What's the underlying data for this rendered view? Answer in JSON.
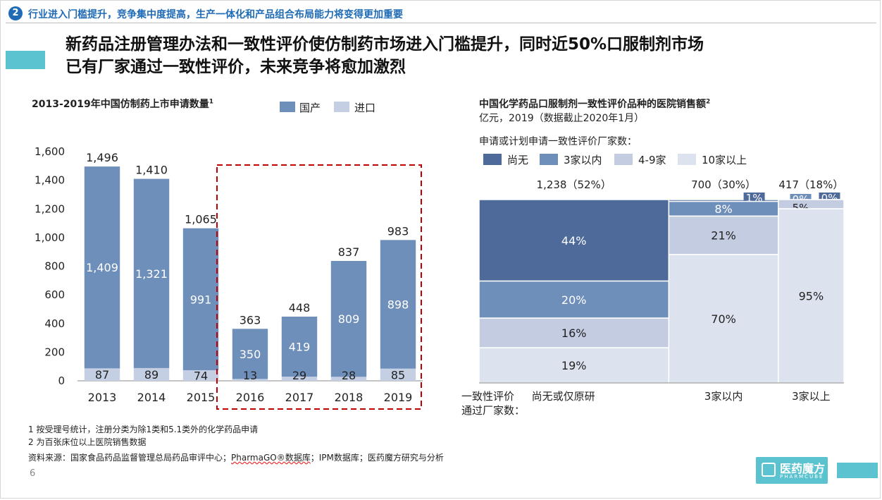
{
  "section": {
    "number": "2",
    "text": "行业进入门槛提升，竞争集中度提高，生产一体化和产品组合布局能力将变得更加重要"
  },
  "title_lines": [
    "新药品注册管理办法和一致性评价使仿制药市场进入门槛提升，同时近50%口服制剂市场",
    "已有厂家通过一致性评价，未来竞争将愈加激烈"
  ],
  "left": {
    "title": "2013-2019年中国仿制药上市申请数量",
    "title_sup": "1"
  },
  "right": {
    "title": "中国化学药品口服制剂一致性评价品种的医院销售额",
    "title_sup": "2",
    "subtitle": "亿元，2019（数据截止2020年1月）",
    "legend_title": "申请或计划申请一致性评价厂家数："
  },
  "colors": {
    "accent": "#1f6bb5",
    "teal": "#5ac3cf",
    "domestic": "#6f8fbb",
    "import": "#c5cfe3",
    "highlight": "#c00000",
    "seg_none": "#4d6a9a",
    "seg_lt3": "#6f8fbb",
    "seg_4to9": "#c3cce0",
    "seg_10plus": "#dde3ee"
  },
  "chart_data": [
    {
      "type": "bar",
      "stacked": true,
      "title": "2013-2019年中国仿制药上市申请数量",
      "categories": [
        "2013",
        "2014",
        "2015",
        "2016",
        "2017",
        "2018",
        "2019"
      ],
      "series": [
        {
          "name": "国产",
          "values": [
            1409,
            1321,
            991,
            350,
            419,
            809,
            898
          ]
        },
        {
          "name": "进口",
          "values": [
            87,
            89,
            74,
            13,
            29,
            28,
            85
          ]
        }
      ],
      "totals": [
        1496,
        1410,
        1065,
        363,
        448,
        837,
        983
      ],
      "total_labels": [
        "1,496",
        "1,410",
        "1,065",
        "363",
        "448",
        "837",
        "983"
      ],
      "value_labels": {
        "国产": [
          "1,409",
          "1,321",
          "991",
          "350",
          "419",
          "809",
          "898"
        ],
        "进口": [
          "87",
          "89",
          "74",
          "13",
          "29",
          "28",
          "85"
        ]
      },
      "yticks": [
        0,
        200,
        400,
        600,
        800,
        1000,
        1200,
        1400,
        1600
      ],
      "ytick_labels": [
        "0",
        "200",
        "400",
        "600",
        "800",
        "1,000",
        "1,200",
        "1,400",
        "1,600"
      ],
      "ylim": [
        0,
        1600
      ],
      "highlight_categories": [
        "2016",
        "2017",
        "2018",
        "2019"
      ]
    },
    {
      "type": "marimekko",
      "title": "中国化学药品口服制剂一致性评价品种的医院销售额",
      "legend": [
        "尚无",
        "3家以内",
        "4-9家",
        "10家以上"
      ],
      "columns": [
        {
          "label": "尚无或仅原研",
          "total": 1238,
          "total_label": "1,238（52%）",
          "share": 52,
          "segments": [
            44,
            20,
            16,
            19
          ],
          "segment_labels": [
            "44%",
            "20%",
            "16%",
            "19%"
          ]
        },
        {
          "label": "3家以内",
          "total": 700,
          "total_label": "700（30%）",
          "share": 30,
          "segments": [
            1,
            8,
            21,
            70
          ],
          "segment_labels": [
            "1%",
            "8%",
            "21%",
            "70%"
          ]
        },
        {
          "label": "3家以上",
          "total": 417,
          "total_label": "417（18%）",
          "share": 18,
          "segments": [
            0,
            0,
            5,
            95
          ],
          "segment_labels": [
            "0%",
            "0%",
            "5%",
            "95%"
          ]
        }
      ],
      "axis_label_lines": [
        "一致性评价",
        "通过厂家数："
      ]
    }
  ],
  "footnotes": [
    "1 按受理号统计，注册分类为除1类和5.1类外的化学药品申请",
    "2 为百张床位以上医院销售数据"
  ],
  "source": {
    "prefix": "资料来源：国家食品药品监督管理总局药品审评中心；",
    "wavy": "PharmaGO®数据库",
    "suffix": "；IPM数据库；医药魔方研究与分析"
  },
  "page_number": "6",
  "logo": {
    "name": "医药魔方",
    "sub": "PHARMCUBE"
  }
}
